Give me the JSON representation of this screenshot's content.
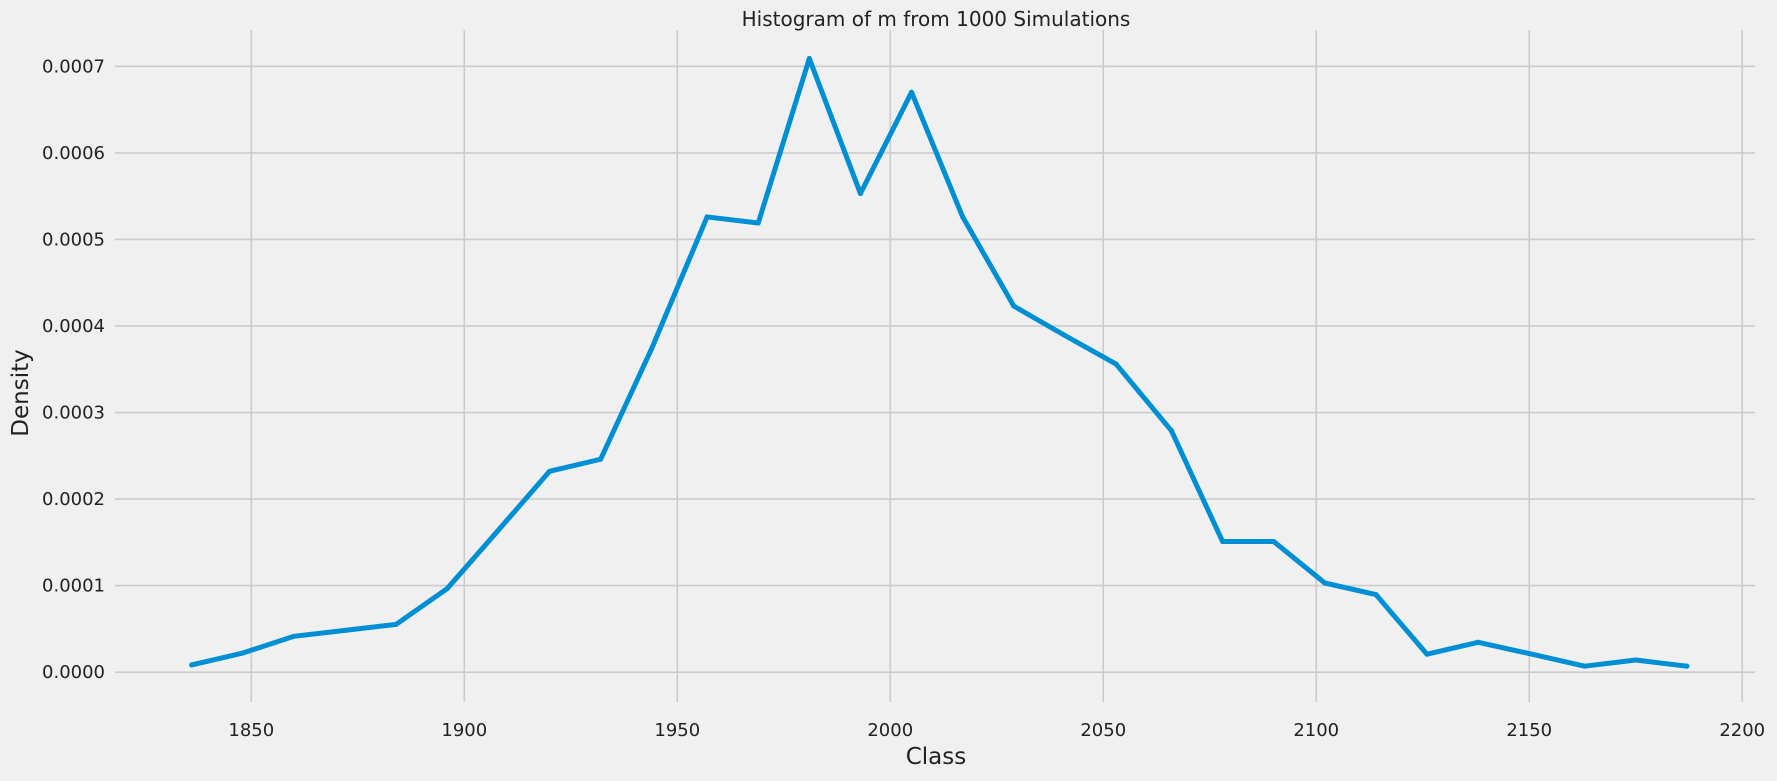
{
  "chart_data": {
    "type": "line",
    "title": "Histogram of m from 1000 Simulations",
    "xlabel": "Class",
    "ylabel": "Density",
    "xlim": [
      1818,
      2203
    ],
    "ylim": [
      -3.45e-05,
      0.000742
    ],
    "xticks": [
      1850,
      1900,
      1950,
      2000,
      2050,
      2100,
      2150,
      2200
    ],
    "yticks": [
      0.0,
      0.0001,
      0.0002,
      0.0003,
      0.0004,
      0.0005,
      0.0006,
      0.0007
    ],
    "xtick_labels": [
      "1850",
      "1900",
      "1950",
      "2000",
      "2050",
      "2100",
      "2150",
      "2200"
    ],
    "ytick_labels": [
      "0.0000",
      "0.0001",
      "0.0002",
      "0.0003",
      "0.0004",
      "0.0005",
      "0.0006",
      "0.0007"
    ],
    "grid": true,
    "line_color": "#008fd5",
    "background_color": "#f0f0f0",
    "grid_color": "#cbcbcb",
    "series": [
      {
        "x": [
          1836,
          1848,
          1860,
          1872,
          1884,
          1896,
          1908,
          1920,
          1932,
          1944,
          1957,
          1969,
          1981,
          1993,
          2005,
          2017,
          2029,
          2041,
          2053,
          2066,
          2078,
          2090,
          2102,
          2114,
          2126,
          2138,
          2150,
          2163,
          2175,
          2187
        ],
        "y": [
          8.3e-06,
          2.21e-05,
          4.14e-05,
          4.83e-05,
          5.52e-05,
          9.66e-05,
          0.000164,
          0.000232,
          0.000246,
          0.000374,
          0.000526,
          0.000519,
          0.000709,
          0.000553,
          0.00067,
          0.000526,
          0.000423,
          0.000389,
          0.000356,
          0.000279,
          0.000151,
          0.000151,
          0.000103,
          8.97e-05,
          2.07e-05,
          3.45e-05,
          2.14e-05,
          6.9e-06,
          1.4e-05,
          6.9e-06
        ]
      }
    ]
  }
}
